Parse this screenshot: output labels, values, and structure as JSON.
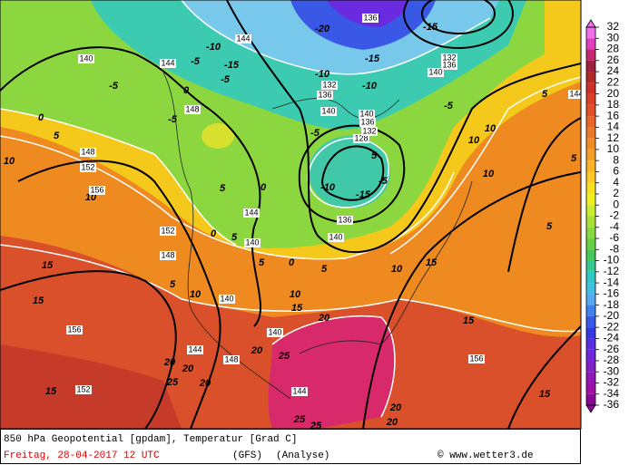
{
  "map": {
    "temperature_labels": [
      "-10",
      "-5",
      "-15",
      "-5",
      "-5",
      "0",
      "0",
      "-5",
      "5",
      "10",
      "10",
      "-5",
      "-10",
      "-15",
      "-5",
      "5",
      "0",
      "5",
      "0",
      "5",
      "-10",
      "-15",
      "-20",
      "-20",
      "-15",
      "-10",
      "-5",
      "5",
      "10",
      "10",
      "10",
      "5",
      "5",
      "15",
      "15",
      "10",
      "10",
      "10",
      "15",
      "15",
      "20",
      "15",
      "20",
      "25",
      "20",
      "20",
      "20",
      "25",
      "15",
      "25",
      "25",
      "20",
      "20",
      "15",
      "0",
      "5",
      "5",
      "5"
    ],
    "height_labels": [
      "140",
      "144",
      "144",
      "148",
      "148",
      "152",
      "156",
      "152",
      "148",
      "144",
      "140",
      "140",
      "140",
      "136",
      "128",
      "132",
      "136",
      "140",
      "140",
      "136",
      "132",
      "136",
      "132",
      "136",
      "140",
      "144",
      "156",
      "152",
      "148",
      "144",
      "140",
      "144",
      "156"
    ]
  },
  "colorbar": {
    "ticks": [
      32,
      30,
      28,
      26,
      24,
      22,
      20,
      18,
      16,
      14,
      12,
      10,
      8,
      6,
      4,
      2,
      0,
      -2,
      -4,
      -6,
      -8,
      -10,
      -12,
      -14,
      -16,
      -18,
      -20,
      -22,
      -24,
      -26,
      -28,
      -30,
      -32,
      -34,
      -36
    ],
    "colors": [
      "#f46ef0",
      "#e040c0",
      "#c8286e",
      "#a02040",
      "#b02828",
      "#c83028",
      "#d84028",
      "#e05028",
      "#e86428",
      "#ec7828",
      "#f08c28",
      "#f4a028",
      "#f8b428",
      "#fcc828",
      "#f8e020",
      "#f0f020",
      "#c8ec30",
      "#a8e038",
      "#88d840",
      "#68d048",
      "#48c858",
      "#38c890",
      "#30c8c0",
      "#40c0e0",
      "#58a8f0",
      "#4080f0",
      "#3858e8",
      "#3838e0",
      "#5830e0",
      "#7028d8",
      "#8020c8",
      "#9018b8",
      "#a010a8",
      "#8a0898"
    ]
  },
  "footer": {
    "description": "850 hPa Geopotential [gpdam], Temperatur [Grad C]",
    "date": "Freitag, 28-04-2017  12 UTC",
    "model": "(GFS)",
    "run": "(Analyse)",
    "credit": "© www.wetter3.de"
  }
}
